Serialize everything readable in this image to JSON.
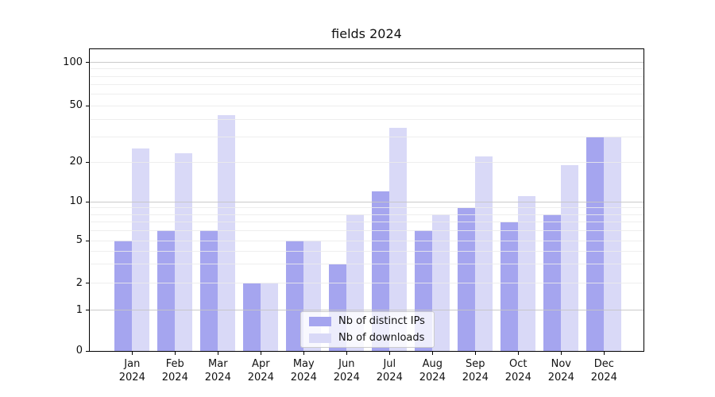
{
  "chart_data": {
    "type": "bar",
    "title": "fields 2024",
    "categories": [
      "Jan 2024",
      "Feb 2024",
      "Mar 2024",
      "Apr 2024",
      "May 2024",
      "Jun 2024",
      "Jul 2024",
      "Aug 2024",
      "Sep 2024",
      "Oct 2024",
      "Nov 2024",
      "Dec 2024"
    ],
    "series": [
      {
        "name": "Nb of distinct IPs",
        "color": "#a5a5ef",
        "values": [
          5,
          6,
          6,
          2,
          5,
          3,
          12,
          6,
          9,
          7,
          8,
          30
        ]
      },
      {
        "name": "Nb of downloads",
        "color": "#d9d9f7",
        "values": [
          25,
          23,
          43,
          2,
          5,
          8,
          35,
          8,
          22,
          11,
          19,
          30
        ]
      }
    ],
    "xlabel": "",
    "ylabel": "",
    "yscale": "symlog",
    "yticks": [
      0,
      1,
      2,
      5,
      10,
      20,
      50,
      100
    ],
    "ylim": [
      0,
      124
    ],
    "grid": "horizontal major at decades (1,10,100) with faint log minors",
    "major_grid_color": "#c5c5c5",
    "minor_grid_color": "#ebebeb",
    "legend_position": "lower center"
  }
}
